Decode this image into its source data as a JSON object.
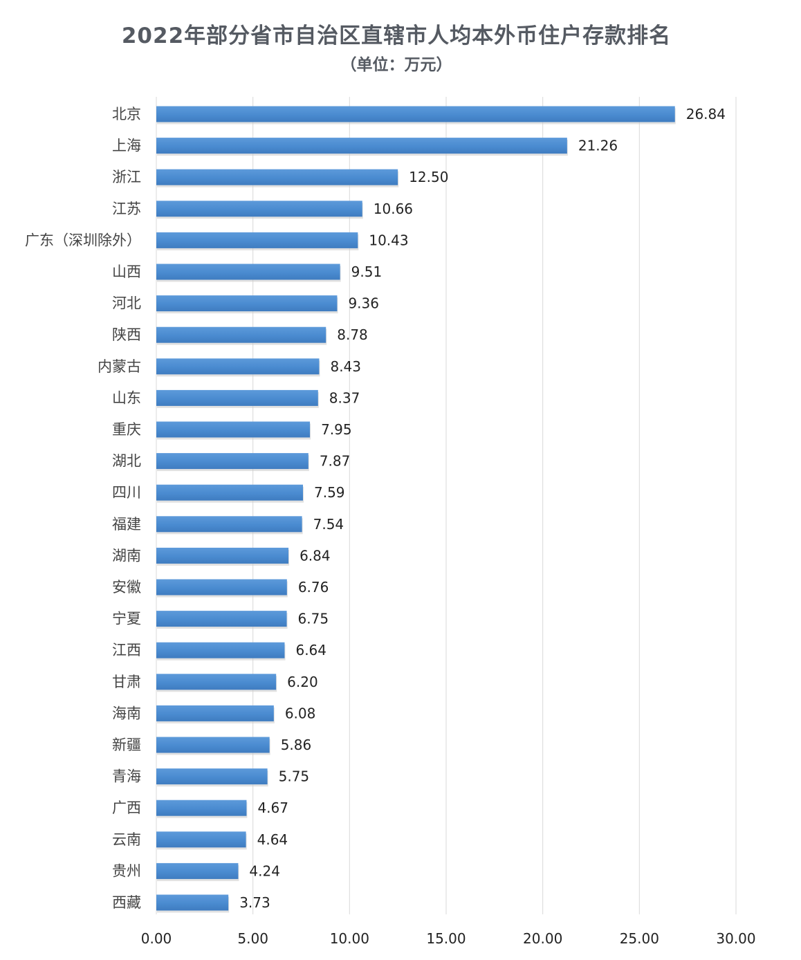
{
  "chart_data": {
    "type": "bar",
    "orientation": "horizontal",
    "title": "2022年部分省市自治区直辖市人均本外币住户存款排名",
    "subtitle": "（单位：万元）",
    "categories": [
      "北京",
      "上海",
      "浙江",
      "江苏",
      "广东（深圳除外）",
      "山西",
      "河北",
      "陕西",
      "内蒙古",
      "山东",
      "重庆",
      "湖北",
      "四川",
      "福建",
      "湖南",
      "安徽",
      "宁夏",
      "江西",
      "甘肃",
      "海南",
      "新疆",
      "青海",
      "广西",
      "云南",
      "贵州",
      "西藏"
    ],
    "values": [
      26.84,
      21.26,
      12.5,
      10.66,
      10.43,
      9.51,
      9.36,
      8.78,
      8.43,
      8.37,
      7.95,
      7.87,
      7.59,
      7.54,
      6.84,
      6.76,
      6.75,
      6.64,
      6.2,
      6.08,
      5.86,
      5.75,
      4.67,
      4.64,
      4.24,
      3.73
    ],
    "value_labels": [
      "26.84",
      "21.26",
      "12.50",
      "10.66",
      "10.43",
      "9.51",
      "9.36",
      "8.78",
      "8.43",
      "8.37",
      "7.95",
      "7.87",
      "7.59",
      "7.54",
      "6.84",
      "6.76",
      "6.75",
      "6.64",
      "6.20",
      "6.08",
      "5.86",
      "5.75",
      "4.67",
      "4.64",
      "4.24",
      "3.73"
    ],
    "xlim": [
      0,
      30
    ],
    "x_ticks": [
      "0.00",
      "5.00",
      "10.00",
      "15.00",
      "20.00",
      "25.00",
      "30.00"
    ],
    "grid": "vertical",
    "legend": "none",
    "bar_color": "#4a8bd0"
  }
}
